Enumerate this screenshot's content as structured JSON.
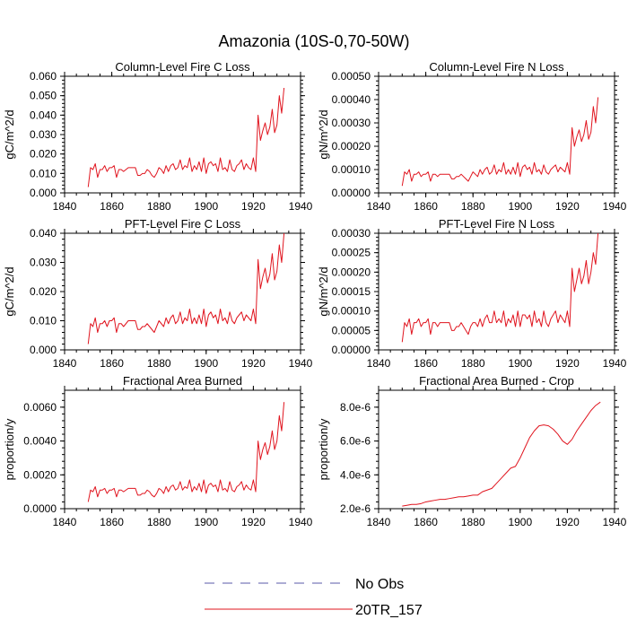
{
  "figure_title": "Amazonia (10S-0,70-50W)",
  "legend": {
    "entries": [
      {
        "label": "No Obs",
        "color": "#5a5aa8",
        "dashed": true
      },
      {
        "label": "20TR_157",
        "color": "#e0141e",
        "dashed": false
      }
    ]
  },
  "chart_data": [
    {
      "type": "line",
      "title": "Column-Level Fire C Loss",
      "ylabel": "gC/m^2/d",
      "xlim": [
        1840,
        1940
      ],
      "ylim": [
        0,
        0.06
      ],
      "yticks": [
        "0.000",
        "0.010",
        "0.020",
        "0.030",
        "0.040",
        "0.050",
        "0.060"
      ],
      "xticks": [
        "1840",
        "1860",
        "1880",
        "1900",
        "1920",
        "1940"
      ],
      "x_start": 1850,
      "x_step": 1,
      "grid": false,
      "series": [
        {
          "name": "20TR_157",
          "color": "#e0141e",
          "values": [
            0.003,
            0.013,
            0.012,
            0.015,
            0.008,
            0.012,
            0.012,
            0.014,
            0.011,
            0.013,
            0.013,
            0.014,
            0.008,
            0.012,
            0.012,
            0.011,
            0.012,
            0.013,
            0.013,
            0.013,
            0.013,
            0.009,
            0.009,
            0.01,
            0.01,
            0.012,
            0.011,
            0.009,
            0.008,
            0.01,
            0.013,
            0.012,
            0.01,
            0.014,
            0.011,
            0.014,
            0.015,
            0.012,
            0.013,
            0.017,
            0.012,
            0.014,
            0.013,
            0.018,
            0.011,
            0.014,
            0.012,
            0.016,
            0.011,
            0.018,
            0.01,
            0.015,
            0.016,
            0.014,
            0.015,
            0.011,
            0.018,
            0.012,
            0.013,
            0.011,
            0.017,
            0.012,
            0.011,
            0.014,
            0.015,
            0.017,
            0.012,
            0.015,
            0.013,
            0.012,
            0.018,
            0.011,
            0.04,
            0.027,
            0.032,
            0.036,
            0.03,
            0.034,
            0.043,
            0.031,
            0.035,
            0.05,
            0.041,
            0.054
          ]
        }
      ]
    },
    {
      "type": "line",
      "title": "Column-Level Fire N Loss",
      "ylabel": "gN/m^2/d",
      "xlim": [
        1840,
        1940
      ],
      "ylim": [
        0,
        0.0005
      ],
      "yticks": [
        "0.00000",
        "0.00010",
        "0.00020",
        "0.00030",
        "0.00040",
        "0.00050"
      ],
      "xticks": [
        "1840",
        "1860",
        "1880",
        "1900",
        "1920",
        "1940"
      ],
      "x_start": 1850,
      "x_step": 1,
      "grid": false,
      "series": [
        {
          "name": "20TR_157",
          "color": "#e0141e",
          "values": [
            3e-05,
            9e-05,
            8e-05,
            0.0001,
            5e-05,
            8e-05,
            8e-05,
            9e-05,
            7e-05,
            8e-05,
            8e-05,
            9e-05,
            5e-05,
            8e-05,
            8e-05,
            7e-05,
            8e-05,
            8e-05,
            8e-05,
            8e-05,
            8e-05,
            6e-05,
            6e-05,
            7e-05,
            7e-05,
            8e-05,
            7e-05,
            6e-05,
            5e-05,
            7e-05,
            9e-05,
            8e-05,
            7e-05,
            0.0001,
            8e-05,
            0.0001,
            0.00011,
            8e-05,
            9e-05,
            0.00012,
            8e-05,
            0.0001,
            9e-05,
            0.00013,
            8e-05,
            0.0001,
            8e-05,
            0.00011,
            8e-05,
            0.00013,
            7e-05,
            0.00011,
            0.00012,
            0.0001,
            0.00011,
            8e-05,
            0.00013,
            9e-05,
            0.0001,
            8e-05,
            0.00012,
            9e-05,
            8e-05,
            0.0001,
            0.00011,
            0.00012,
            9e-05,
            0.00011,
            0.0001,
            9e-05,
            0.00013,
            8e-05,
            0.00028,
            0.0002,
            0.00024,
            0.00027,
            0.00022,
            0.00025,
            0.00031,
            0.00023,
            0.00026,
            0.00037,
            0.0003,
            0.00041
          ]
        }
      ]
    },
    {
      "type": "line",
      "title": "PFT-Level Fire C Loss",
      "ylabel": "gC/m^2/d",
      "xlim": [
        1840,
        1940
      ],
      "ylim": [
        0,
        0.04
      ],
      "yticks": [
        "0.000",
        "0.010",
        "0.020",
        "0.030",
        "0.040"
      ],
      "xticks": [
        "1840",
        "1860",
        "1880",
        "1900",
        "1920",
        "1940"
      ],
      "x_start": 1850,
      "x_step": 1,
      "grid": false,
      "series": [
        {
          "name": "20TR_157",
          "color": "#e0141e",
          "values": [
            0.002,
            0.009,
            0.008,
            0.011,
            0.006,
            0.009,
            0.009,
            0.01,
            0.008,
            0.01,
            0.01,
            0.011,
            0.006,
            0.009,
            0.009,
            0.008,
            0.009,
            0.01,
            0.01,
            0.01,
            0.01,
            0.007,
            0.007,
            0.008,
            0.008,
            0.009,
            0.008,
            0.007,
            0.006,
            0.008,
            0.01,
            0.009,
            0.008,
            0.011,
            0.009,
            0.011,
            0.012,
            0.009,
            0.01,
            0.013,
            0.009,
            0.011,
            0.01,
            0.014,
            0.009,
            0.011,
            0.009,
            0.012,
            0.009,
            0.014,
            0.008,
            0.012,
            0.013,
            0.011,
            0.012,
            0.009,
            0.014,
            0.01,
            0.011,
            0.009,
            0.013,
            0.01,
            0.009,
            0.011,
            0.012,
            0.013,
            0.01,
            0.012,
            0.011,
            0.01,
            0.014,
            0.009,
            0.031,
            0.021,
            0.025,
            0.028,
            0.023,
            0.026,
            0.033,
            0.024,
            0.027,
            0.036,
            0.03,
            0.04
          ]
        }
      ]
    },
    {
      "type": "line",
      "title": "PFT-Level Fire N Loss",
      "ylabel": "gN/m^2/d",
      "xlim": [
        1840,
        1940
      ],
      "ylim": [
        0,
        0.0003
      ],
      "yticks": [
        "0.00000",
        "0.00005",
        "0.00010",
        "0.00015",
        "0.00020",
        "0.00025",
        "0.00030"
      ],
      "xticks": [
        "1840",
        "1860",
        "1880",
        "1900",
        "1920",
        "1940"
      ],
      "x_start": 1850,
      "x_step": 1,
      "grid": false,
      "series": [
        {
          "name": "20TR_157",
          "color": "#e0141e",
          "values": [
            2e-05,
            7e-05,
            6e-05,
            8e-05,
            4e-05,
            7e-05,
            7e-05,
            8e-05,
            6e-05,
            7e-05,
            7e-05,
            8e-05,
            4e-05,
            7e-05,
            7e-05,
            6e-05,
            7e-05,
            7e-05,
            7e-05,
            7e-05,
            7e-05,
            5e-05,
            5e-05,
            6e-05,
            6e-05,
            7e-05,
            6e-05,
            5e-05,
            4e-05,
            6e-05,
            7e-05,
            7e-05,
            6e-05,
            8e-05,
            6e-05,
            8e-05,
            9e-05,
            7e-05,
            7e-05,
            0.0001,
            7e-05,
            8e-05,
            7e-05,
            0.0001,
            6e-05,
            8e-05,
            7e-05,
            9e-05,
            6e-05,
            0.0001,
            6e-05,
            9e-05,
            9e-05,
            8e-05,
            9e-05,
            6e-05,
            0.0001,
            7e-05,
            8e-05,
            6e-05,
            0.0001,
            7e-05,
            6e-05,
            8e-05,
            9e-05,
            0.0001,
            7e-05,
            9e-05,
            8e-05,
            7e-05,
            0.0001,
            6e-05,
            0.00021,
            0.00015,
            0.00018,
            0.00021,
            0.00017,
            0.00019,
            0.00023,
            0.00017,
            0.0002,
            0.00025,
            0.00022,
            0.0003
          ]
        }
      ]
    },
    {
      "type": "line",
      "title": "Fractional Area Burned",
      "ylabel": "proportion/y",
      "xlim": [
        1840,
        1940
      ],
      "ylim": [
        0,
        0.007
      ],
      "yticks": [
        "0.0000",
        "0.0020",
        "0.0040",
        "0.0060"
      ],
      "ytick_values": [
        0,
        0.002,
        0.004,
        0.006
      ],
      "xticks": [
        "1840",
        "1860",
        "1880",
        "1900",
        "1920",
        "1940"
      ],
      "x_start": 1850,
      "x_step": 1,
      "grid": false,
      "series": [
        {
          "name": "20TR_157",
          "color": "#e0141e",
          "values": [
            0.0004,
            0.0011,
            0.001,
            0.0013,
            0.0007,
            0.0011,
            0.0011,
            0.0012,
            0.0009,
            0.0011,
            0.0011,
            0.0012,
            0.0007,
            0.0011,
            0.0011,
            0.001,
            0.0011,
            0.0012,
            0.0012,
            0.0012,
            0.0012,
            0.0008,
            0.0008,
            0.0009,
            0.0009,
            0.0011,
            0.001,
            0.0008,
            0.0007,
            0.0009,
            0.0012,
            0.0011,
            0.0009,
            0.0013,
            0.001,
            0.0013,
            0.0014,
            0.0011,
            0.0012,
            0.0016,
            0.0011,
            0.0013,
            0.0012,
            0.0017,
            0.001,
            0.0013,
            0.0011,
            0.0015,
            0.001,
            0.0017,
            0.0009,
            0.0014,
            0.0015,
            0.0013,
            0.0014,
            0.001,
            0.0017,
            0.0011,
            0.0012,
            0.001,
            0.0016,
            0.0011,
            0.001,
            0.0013,
            0.0014,
            0.0016,
            0.0011,
            0.0014,
            0.0012,
            0.0011,
            0.0017,
            0.001,
            0.004,
            0.0029,
            0.0035,
            0.0039,
            0.0032,
            0.0037,
            0.0046,
            0.0035,
            0.004,
            0.0055,
            0.0046,
            0.0063
          ]
        }
      ]
    },
    {
      "type": "line",
      "title": "Fractional Area Burned - Crop",
      "ylabel": "proportion/y",
      "xlim": [
        1840,
        1940
      ],
      "ylim": [
        2e-06,
        9e-06
      ],
      "yticks": [
        "2.0e-6",
        "4.0e-6",
        "6.0e-6",
        "8.0e-6"
      ],
      "ytick_values": [
        2e-06,
        4e-06,
        6e-06,
        8e-06
      ],
      "xticks": [
        "1840",
        "1860",
        "1880",
        "1900",
        "1920",
        "1940"
      ],
      "x_start": 1850,
      "x_step": 2,
      "grid": false,
      "series": [
        {
          "name": "20TR_157",
          "color": "#e0141e",
          "values": [
            2.15e-06,
            2.2e-06,
            2.25e-06,
            2.25e-06,
            2.3e-06,
            2.4e-06,
            2.45e-06,
            2.5e-06,
            2.55e-06,
            2.55e-06,
            2.6e-06,
            2.65e-06,
            2.7e-06,
            2.7e-06,
            2.75e-06,
            2.8e-06,
            2.8e-06,
            3e-06,
            3.1e-06,
            3.2e-06,
            3.5e-06,
            3.8e-06,
            4.1e-06,
            4.4e-06,
            4.5e-06,
            5e-06,
            5.6e-06,
            6.2e-06,
            6.6e-06,
            6.9e-06,
            6.95e-06,
            6.9e-06,
            6.7e-06,
            6.4e-06,
            6e-06,
            5.8e-06,
            6.1e-06,
            6.6e-06,
            7e-06,
            7.4e-06,
            7.8e-06,
            8.1e-06,
            8.3e-06
          ]
        }
      ]
    }
  ]
}
